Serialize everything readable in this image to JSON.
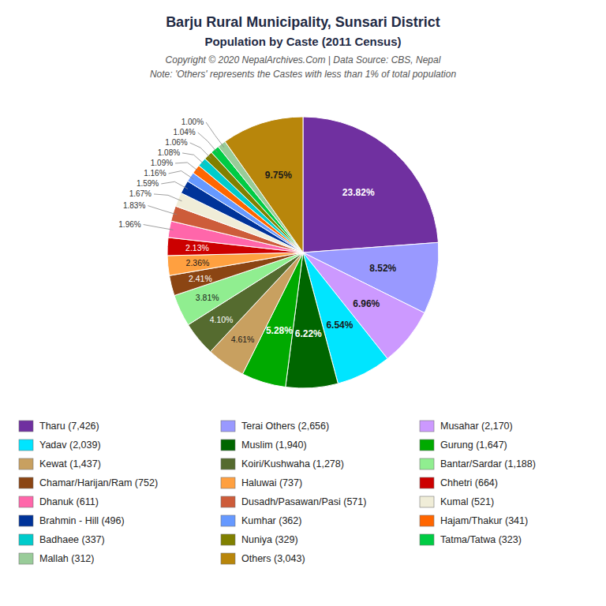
{
  "chart_data": {
    "type": "pie",
    "title": "Barju Rural Municipality, Sunsari District",
    "subtitle": "Population by Caste (2011 Census)",
    "annotations": [
      "Copyright © 2020 NepalArchives.Com | Data Source: CBS, Nepal",
      "Note: 'Others' represents the Castes with less than 1% of total population"
    ],
    "categories": [
      "Tharu (7,426)",
      "Terai Others (2,656)",
      "Musahar (2,170)",
      "Yadav (2,039)",
      "Muslim (1,940)",
      "Gurung (1,647)",
      "Kewat (1,437)",
      "Koiri/Kushwaha (1,278)",
      "Bantar/Sardar (1,188)",
      "Chamar/Harijan/Ram (752)",
      "Haluwai (737)",
      "Chhetri (664)",
      "Dhanuk (611)",
      "Dusadh/Pasawan/Pasi (571)",
      "Kumal (521)",
      "Brahmin - Hill (496)",
      "Kumhar (362)",
      "Hajam/Thakur (341)",
      "Badhaee (337)",
      "Nuniya (329)",
      "Tatma/Tatwa (323)",
      "Mallah (312)",
      "Others (3,043)"
    ],
    "values": [
      23.82,
      8.52,
      6.96,
      6.54,
      6.22,
      5.28,
      4.61,
      4.1,
      3.81,
      2.41,
      2.36,
      2.13,
      1.96,
      1.83,
      1.67,
      1.59,
      1.16,
      1.09,
      1.08,
      1.06,
      1.04,
      1.0,
      9.75
    ],
    "value_labels": [
      "23.82%",
      "8.52%",
      "6.96%",
      "6.54%",
      "6.22%",
      "5.28%",
      "4.61%",
      "4.10%",
      "3.81%",
      "2.41%",
      "2.36%",
      "2.13%",
      "1.96%",
      "1.83%",
      "1.67%",
      "1.59%",
      "1.16%",
      "1.09%",
      "1.08%",
      "1.06%",
      "1.04%",
      "1.00%",
      "9.75%"
    ],
    "colors": [
      "#7030A0",
      "#9999FF",
      "#CC99FF",
      "#00E5FF",
      "#006600",
      "#00AA00",
      "#C8A060",
      "#556B2F",
      "#90EE90",
      "#8B4513",
      "#FFA040",
      "#CC0000",
      "#FF66AA",
      "#CD5C3A",
      "#F0EDD8",
      "#003399",
      "#6699FF",
      "#FF6600",
      "#00CCCC",
      "#808000",
      "#00CC44",
      "#99CC99",
      "#B8860B"
    ],
    "data_labels": true,
    "legend": "bottom"
  }
}
